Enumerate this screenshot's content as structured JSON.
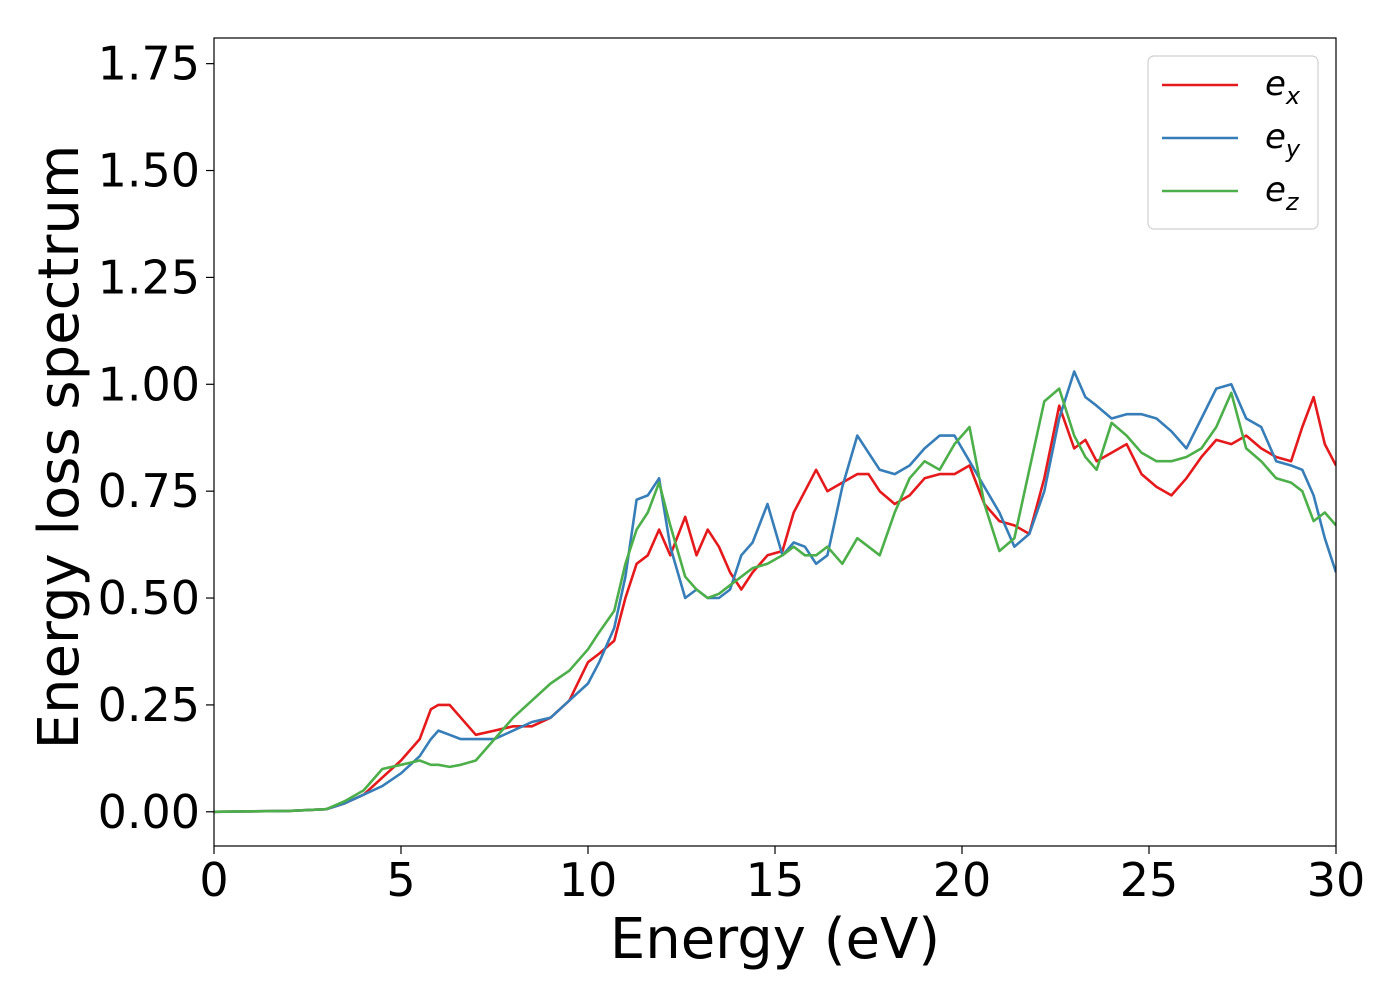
{
  "chart_data": {
    "type": "line",
    "xlabel": "Energy (eV)",
    "ylabel": "Energy loss spectrum",
    "xlim": [
      0,
      30
    ],
    "ylim": [
      -0.08,
      1.81
    ],
    "xticks": [
      0,
      5,
      10,
      15,
      20,
      25,
      30
    ],
    "xtick_labels": [
      "0",
      "5",
      "10",
      "15",
      "20",
      "25",
      "30"
    ],
    "yticks": [
      0.0,
      0.25,
      0.5,
      0.75,
      1.0,
      1.25,
      1.5,
      1.75
    ],
    "ytick_labels": [
      "0.00",
      "0.25",
      "0.50",
      "0.75",
      "1.00",
      "1.25",
      "1.50",
      "1.75"
    ],
    "grid": false,
    "legend_position": "top-right",
    "series": [
      {
        "base": "e",
        "sub": "x",
        "color": "#e41a1c",
        "x": [
          0,
          2,
          3,
          3.5,
          4,
          4.5,
          5,
          5.5,
          5.8,
          6,
          6.3,
          6.6,
          7,
          7.5,
          8,
          8.5,
          9,
          9.5,
          10,
          10.3,
          10.7,
          11,
          11.3,
          11.6,
          11.9,
          12.2,
          12.6,
          12.9,
          13.2,
          13.5,
          13.8,
          14.1,
          14.4,
          14.8,
          15.2,
          15.5,
          15.8,
          16.1,
          16.4,
          16.8,
          17.2,
          17.5,
          17.8,
          18.2,
          18.6,
          19,
          19.4,
          19.8,
          20.2,
          20.6,
          21,
          21.4,
          21.8,
          22.2,
          22.6,
          23,
          23.3,
          23.6,
          24,
          24.4,
          24.8,
          25.2,
          25.6,
          26,
          26.4,
          26.8,
          27.2,
          27.6,
          28,
          28.4,
          28.8,
          29.1,
          29.4,
          29.7,
          30
        ],
        "y": [
          0,
          0.002,
          0.006,
          0.02,
          0.04,
          0.08,
          0.12,
          0.17,
          0.24,
          0.25,
          0.25,
          0.22,
          0.18,
          0.19,
          0.2,
          0.2,
          0.22,
          0.26,
          0.35,
          0.37,
          0.4,
          0.5,
          0.58,
          0.6,
          0.66,
          0.6,
          0.69,
          0.6,
          0.66,
          0.62,
          0.56,
          0.52,
          0.56,
          0.6,
          0.61,
          0.7,
          0.75,
          0.8,
          0.75,
          0.77,
          0.79,
          0.79,
          0.75,
          0.72,
          0.74,
          0.78,
          0.79,
          0.79,
          0.81,
          0.72,
          0.68,
          0.67,
          0.65,
          0.78,
          0.95,
          0.85,
          0.87,
          0.82,
          0.84,
          0.86,
          0.79,
          0.76,
          0.74,
          0.78,
          0.83,
          0.87,
          0.86,
          0.88,
          0.85,
          0.83,
          0.82,
          0.9,
          0.97,
          0.86,
          0.81
        ]
      },
      {
        "base": "e",
        "sub": "y",
        "color": "#377eb8",
        "x": [
          0,
          2,
          3,
          3.5,
          4,
          4.5,
          5,
          5.5,
          5.8,
          6,
          6.3,
          6.6,
          7,
          7.5,
          8,
          8.5,
          9,
          9.5,
          10,
          10.3,
          10.7,
          11,
          11.3,
          11.6,
          11.9,
          12.2,
          12.6,
          12.9,
          13.2,
          13.5,
          13.8,
          14.1,
          14.4,
          14.8,
          15.2,
          15.5,
          15.8,
          16.1,
          16.4,
          16.8,
          17.2,
          17.5,
          17.8,
          18.2,
          18.6,
          19,
          19.4,
          19.8,
          20.2,
          20.6,
          21,
          21.4,
          21.8,
          22.2,
          22.6,
          23,
          23.3,
          23.6,
          24,
          24.4,
          24.8,
          25.2,
          25.6,
          26,
          26.4,
          26.8,
          27.2,
          27.6,
          28,
          28.4,
          28.8,
          29.1,
          29.4,
          29.7,
          30
        ],
        "y": [
          0,
          0.002,
          0.006,
          0.02,
          0.04,
          0.06,
          0.09,
          0.13,
          0.17,
          0.19,
          0.18,
          0.17,
          0.17,
          0.17,
          0.19,
          0.21,
          0.22,
          0.26,
          0.3,
          0.35,
          0.43,
          0.55,
          0.73,
          0.74,
          0.78,
          0.62,
          0.5,
          0.52,
          0.5,
          0.5,
          0.52,
          0.6,
          0.63,
          0.72,
          0.6,
          0.63,
          0.62,
          0.58,
          0.6,
          0.76,
          0.88,
          0.84,
          0.8,
          0.79,
          0.81,
          0.85,
          0.88,
          0.88,
          0.82,
          0.76,
          0.7,
          0.62,
          0.65,
          0.75,
          0.92,
          1.03,
          0.97,
          0.95,
          0.92,
          0.93,
          0.93,
          0.92,
          0.89,
          0.85,
          0.92,
          0.99,
          1.0,
          0.92,
          0.9,
          0.82,
          0.81,
          0.8,
          0.74,
          0.64,
          0.56
        ]
      },
      {
        "base": "e",
        "sub": "z",
        "color": "#4daf4a",
        "x": [
          0,
          2,
          3,
          3.5,
          4,
          4.5,
          5,
          5.5,
          5.8,
          6,
          6.3,
          6.6,
          7,
          7.5,
          8,
          8.5,
          9,
          9.5,
          10,
          10.3,
          10.7,
          11,
          11.3,
          11.6,
          11.9,
          12.2,
          12.6,
          12.9,
          13.2,
          13.5,
          13.8,
          14.1,
          14.4,
          14.8,
          15.2,
          15.5,
          15.8,
          16.1,
          16.4,
          16.8,
          17.2,
          17.5,
          17.8,
          18.2,
          18.6,
          19,
          19.4,
          19.8,
          20.2,
          20.6,
          21,
          21.4,
          21.8,
          22.2,
          22.6,
          23,
          23.3,
          23.6,
          24,
          24.4,
          24.8,
          25.2,
          25.6,
          26,
          26.4,
          26.8,
          27.2,
          27.6,
          28,
          28.4,
          28.8,
          29.1,
          29.4,
          29.7,
          30
        ],
        "y": [
          0,
          0.002,
          0.006,
          0.025,
          0.05,
          0.1,
          0.11,
          0.12,
          0.11,
          0.11,
          0.105,
          0.11,
          0.12,
          0.17,
          0.22,
          0.26,
          0.3,
          0.33,
          0.38,
          0.42,
          0.47,
          0.58,
          0.66,
          0.7,
          0.77,
          0.67,
          0.55,
          0.52,
          0.5,
          0.51,
          0.53,
          0.55,
          0.57,
          0.58,
          0.6,
          0.62,
          0.6,
          0.6,
          0.62,
          0.58,
          0.64,
          0.62,
          0.6,
          0.7,
          0.78,
          0.82,
          0.8,
          0.86,
          0.9,
          0.72,
          0.61,
          0.64,
          0.8,
          0.96,
          0.99,
          0.88,
          0.83,
          0.8,
          0.91,
          0.88,
          0.84,
          0.82,
          0.82,
          0.83,
          0.85,
          0.9,
          0.98,
          0.85,
          0.82,
          0.78,
          0.77,
          0.75,
          0.68,
          0.7,
          0.67
        ]
      }
    ]
  }
}
